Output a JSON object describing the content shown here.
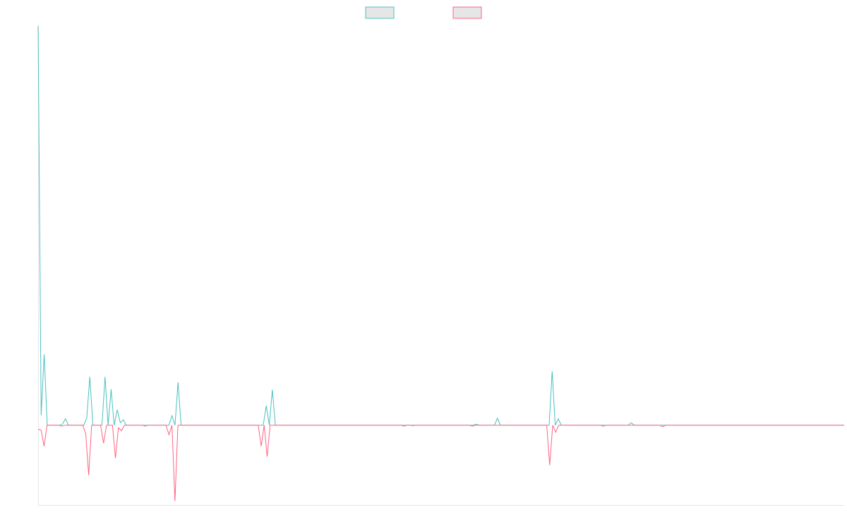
{
  "chart_data": {
    "type": "line",
    "title": "",
    "xlabel": "",
    "ylabel": "",
    "grid": false,
    "legend": "top-center",
    "ylim": [
      -1.6,
      8.0
    ],
    "series": [
      {
        "name": "",
        "color": "#4bc0c0",
        "fill": "#e6e6e6",
        "values": [
          8.0,
          0.2,
          1.42,
          0,
          0,
          0,
          0,
          0,
          0.02,
          0.13,
          0,
          0,
          0,
          0,
          0,
          0,
          0.15,
          0.97,
          0,
          0,
          0,
          0,
          0.97,
          0,
          0.72,
          0,
          0.31,
          0.05,
          0.11,
          0,
          0,
          0,
          0,
          0,
          0,
          0,
          0,
          0,
          0,
          0,
          0,
          0,
          0,
          0,
          0.19,
          0,
          0.86,
          0,
          0,
          0,
          0,
          0,
          0,
          0,
          0,
          0,
          0,
          0,
          0,
          0,
          0,
          0,
          0,
          0,
          0,
          0,
          0,
          0,
          0,
          0,
          0,
          0,
          0,
          0,
          0,
          0.39,
          0,
          0.71,
          0,
          0,
          0,
          0,
          0,
          0,
          0,
          0,
          0,
          0,
          0,
          0,
          0,
          0,
          0,
          0,
          0,
          0,
          0,
          0,
          0,
          0,
          0,
          0,
          0,
          0,
          0,
          0,
          0,
          0,
          0,
          0,
          0,
          0,
          0,
          0,
          0,
          0,
          0,
          0,
          0,
          0,
          0,
          0,
          0,
          0,
          0,
          0,
          0,
          0,
          0,
          0,
          0,
          0,
          0,
          0,
          0,
          0,
          0,
          0,
          0,
          0,
          0,
          0,
          0,
          0,
          0.02,
          0,
          0,
          0,
          0,
          0,
          0,
          0.14,
          0,
          0,
          0,
          0,
          0,
          0,
          0,
          0,
          0,
          0,
          0,
          0,
          0,
          0,
          0,
          0,
          0,
          1.08,
          0,
          0.13,
          0,
          0,
          0,
          0,
          0,
          0,
          0,
          0,
          0,
          0,
          0,
          0,
          0,
          0,
          0,
          0,
          0,
          0,
          0,
          0,
          0,
          0,
          0,
          0.05,
          0,
          0,
          0,
          0,
          0,
          0,
          0,
          0,
          0,
          0,
          0,
          0,
          0,
          0,
          0,
          0,
          0,
          0,
          0,
          0,
          0,
          0,
          0,
          0,
          0,
          0,
          0,
          0,
          0,
          0,
          0,
          0,
          0,
          0,
          0,
          0,
          0,
          0,
          0,
          0,
          0,
          0,
          0,
          0,
          0,
          0,
          0,
          0,
          0,
          0,
          0,
          0,
          0,
          0,
          0,
          0,
          0,
          0,
          0,
          0,
          0,
          0,
          0,
          0,
          0,
          0,
          0,
          0,
          0,
          0
        ]
      },
      {
        "name": "",
        "color": "#ff6384",
        "fill": "#e6e6e6",
        "values": [
          -0.08,
          -0.1,
          -0.42,
          0,
          0,
          0,
          0,
          0,
          -0.02,
          0,
          0,
          0,
          0,
          0,
          0,
          0,
          -0.17,
          -1.0,
          0,
          0,
          0,
          0,
          -0.36,
          0,
          0,
          0,
          -0.66,
          -0.05,
          -0.11,
          0,
          0,
          0,
          0,
          0,
          0,
          0,
          -0.02,
          0,
          0,
          0,
          0,
          0,
          0,
          0,
          -0.19,
          0,
          -1.52,
          0,
          0,
          0,
          0,
          0,
          0,
          0,
          0,
          0,
          0,
          0,
          0,
          0,
          0,
          0,
          0,
          0,
          0,
          0,
          0,
          0,
          0,
          0,
          0,
          0,
          0,
          0,
          0,
          -0.42,
          0,
          -0.63,
          0,
          0,
          0,
          0,
          0,
          0,
          0,
          0,
          0,
          0,
          0,
          0,
          0,
          0,
          0,
          0,
          0,
          0,
          0,
          0,
          0,
          0,
          0,
          0,
          0,
          0,
          0,
          0,
          0,
          0,
          0,
          0,
          0,
          0,
          0,
          0,
          0,
          0,
          0,
          0,
          0,
          0,
          0,
          0,
          0,
          -0.02,
          0,
          0,
          -0.01,
          0,
          0,
          0,
          0,
          0,
          0,
          0,
          0,
          0,
          0,
          0,
          0,
          0,
          0,
          0,
          0,
          0,
          0,
          0,
          -0.02,
          0,
          0,
          0,
          0,
          0,
          0,
          0,
          0,
          0,
          0,
          0,
          0,
          0,
          0,
          0,
          0,
          0,
          0,
          0,
          0,
          0,
          0,
          0,
          0,
          0,
          -0.8,
          0,
          -0.14,
          0,
          0,
          0,
          0,
          0,
          0,
          0,
          0,
          0,
          0,
          0,
          0,
          0,
          0,
          0,
          -0.02,
          0,
          0,
          0,
          0,
          0,
          0,
          0,
          0,
          0,
          0,
          0,
          0,
          0,
          0,
          0,
          0,
          0,
          0,
          0,
          -0.03,
          0,
          0,
          0,
          0,
          0,
          0,
          0,
          0,
          0,
          0,
          0,
          0,
          0,
          0,
          0,
          0,
          0,
          0,
          0,
          0,
          0,
          0,
          0,
          0,
          0,
          0,
          0,
          0,
          0,
          0,
          0,
          0,
          0,
          0,
          0,
          0,
          0,
          0,
          0,
          0,
          0,
          0,
          0,
          0,
          0,
          0,
          0,
          0,
          0,
          0,
          0,
          0,
          0,
          0,
          0,
          0,
          0,
          0,
          0,
          0,
          0
        ]
      }
    ]
  }
}
